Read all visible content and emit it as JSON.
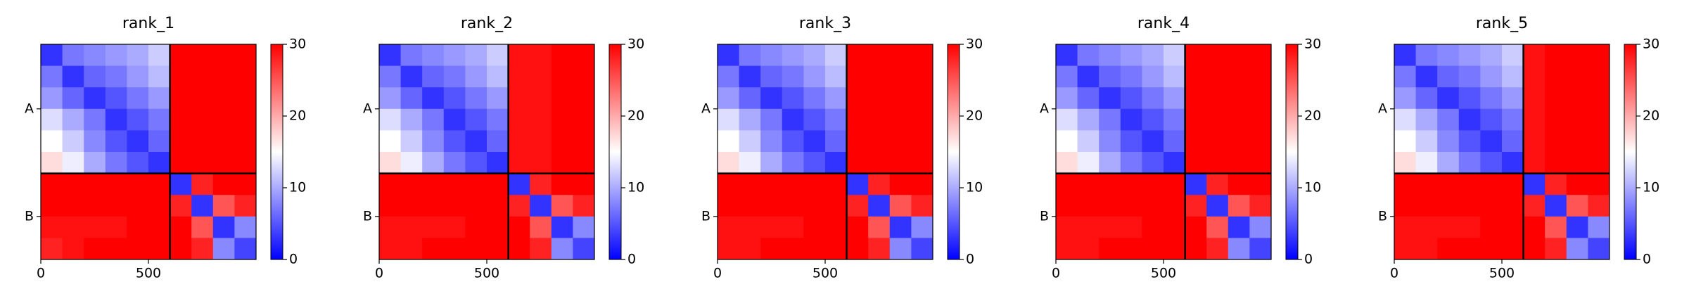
{
  "chart_data": [
    {
      "type": "heatmap",
      "title": "rank_1",
      "colormap": "bwr",
      "xlim": [
        0,
        1000
      ],
      "ylim": [
        0,
        1000
      ],
      "xticks": [
        0,
        500
      ],
      "yticks": [
        {
          "value": 300,
          "label": "A"
        },
        {
          "value": 800,
          "label": "B"
        }
      ],
      "chain_breaks": [
        600
      ],
      "clim": [
        0,
        30
      ],
      "cticks": [
        0,
        10,
        20,
        30
      ],
      "z": [
        [
          3,
          7,
          8,
          9,
          10,
          12,
          30,
          30,
          30,
          30
        ],
        [
          7,
          3,
          6,
          7,
          9,
          11,
          30,
          30,
          30,
          30
        ],
        [
          9,
          6,
          3,
          5,
          7,
          9,
          30,
          30,
          30,
          30
        ],
        [
          13,
          10,
          7,
          3,
          5,
          7,
          30,
          30,
          30,
          30
        ],
        [
          15,
          12,
          8,
          5,
          3,
          6,
          30,
          30,
          30,
          30
        ],
        [
          17,
          14,
          10,
          7,
          5,
          3,
          30,
          30,
          30,
          30
        ],
        [
          30,
          30,
          30,
          30,
          30,
          30,
          3,
          28,
          30,
          30
        ],
        [
          30,
          30,
          30,
          30,
          30,
          30,
          28,
          3,
          25,
          28
        ],
        [
          29,
          29,
          29,
          29,
          30,
          30,
          30,
          25,
          3,
          8
        ],
        [
          28,
          29,
          30,
          30,
          30,
          30,
          30,
          28,
          8,
          4
        ]
      ]
    },
    {
      "type": "heatmap",
      "title": "rank_2",
      "colormap": "bwr",
      "xlim": [
        0,
        1000
      ],
      "ylim": [
        0,
        1000
      ],
      "xticks": [
        0,
        500
      ],
      "yticks": [
        {
          "value": 300,
          "label": "A"
        },
        {
          "value": 800,
          "label": "B"
        }
      ],
      "chain_breaks": [
        600
      ],
      "clim": [
        0,
        30
      ],
      "cticks": [
        0,
        10,
        20,
        30
      ],
      "z": [
        [
          3,
          7,
          8,
          9,
          10,
          12,
          29,
          29,
          30,
          30
        ],
        [
          7,
          3,
          6,
          7,
          9,
          11,
          29,
          29,
          30,
          30
        ],
        [
          9,
          6,
          3,
          5,
          7,
          9,
          29,
          29,
          30,
          30
        ],
        [
          13,
          10,
          7,
          3,
          5,
          7,
          29,
          29,
          30,
          30
        ],
        [
          15,
          12,
          8,
          5,
          3,
          6,
          29,
          29,
          30,
          30
        ],
        [
          17,
          14,
          10,
          7,
          5,
          3,
          29,
          29,
          30,
          30
        ],
        [
          30,
          30,
          30,
          30,
          30,
          30,
          3,
          28,
          30,
          30
        ],
        [
          30,
          30,
          30,
          30,
          30,
          30,
          28,
          3,
          25,
          28
        ],
        [
          29,
          29,
          29,
          29,
          30,
          30,
          30,
          25,
          3,
          8
        ],
        [
          29,
          29,
          30,
          30,
          30,
          30,
          30,
          28,
          8,
          4
        ]
      ]
    },
    {
      "type": "heatmap",
      "title": "rank_3",
      "colormap": "bwr",
      "xlim": [
        0,
        1000
      ],
      "ylim": [
        0,
        1000
      ],
      "xticks": [
        0,
        500
      ],
      "yticks": [
        {
          "value": 300,
          "label": "A"
        },
        {
          "value": 800,
          "label": "B"
        }
      ],
      "chain_breaks": [
        600
      ],
      "clim": [
        0,
        30
      ],
      "cticks": [
        0,
        10,
        20,
        30
      ],
      "z": [
        [
          3,
          7,
          8,
          9,
          10,
          12,
          30,
          30,
          30,
          30
        ],
        [
          7,
          3,
          6,
          7,
          9,
          11,
          30,
          30,
          30,
          30
        ],
        [
          9,
          6,
          3,
          5,
          7,
          9,
          30,
          30,
          30,
          30
        ],
        [
          13,
          10,
          7,
          3,
          5,
          7,
          30,
          30,
          30,
          30
        ],
        [
          15,
          12,
          8,
          5,
          3,
          6,
          30,
          30,
          30,
          30
        ],
        [
          17,
          14,
          10,
          7,
          5,
          3,
          30,
          30,
          30,
          30
        ],
        [
          30,
          30,
          30,
          30,
          30,
          30,
          3,
          28,
          30,
          30
        ],
        [
          30,
          30,
          30,
          30,
          30,
          30,
          28,
          3,
          25,
          28
        ],
        [
          29,
          29,
          29,
          29,
          30,
          30,
          30,
          25,
          3,
          8
        ],
        [
          29,
          29,
          30,
          30,
          30,
          30,
          30,
          28,
          8,
          4
        ]
      ]
    },
    {
      "type": "heatmap",
      "title": "rank_4",
      "colormap": "bwr",
      "xlim": [
        0,
        1000
      ],
      "ylim": [
        0,
        1000
      ],
      "xticks": [
        0,
        500
      ],
      "yticks": [
        {
          "value": 300,
          "label": "A"
        },
        {
          "value": 800,
          "label": "B"
        }
      ],
      "chain_breaks": [
        600
      ],
      "clim": [
        0,
        30
      ],
      "cticks": [
        0,
        10,
        20,
        30
      ],
      "z": [
        [
          3,
          7,
          8,
          9,
          10,
          12,
          30,
          30,
          30,
          30
        ],
        [
          7,
          3,
          6,
          7,
          9,
          11,
          30,
          30,
          30,
          30
        ],
        [
          9,
          6,
          3,
          5,
          7,
          9,
          30,
          30,
          30,
          30
        ],
        [
          13,
          10,
          7,
          3,
          5,
          7,
          30,
          30,
          30,
          30
        ],
        [
          15,
          12,
          8,
          5,
          3,
          6,
          30,
          30,
          30,
          30
        ],
        [
          17,
          14,
          10,
          7,
          5,
          3,
          30,
          30,
          30,
          30
        ],
        [
          30,
          30,
          30,
          30,
          30,
          30,
          3,
          28,
          30,
          30
        ],
        [
          30,
          30,
          30,
          30,
          30,
          30,
          28,
          3,
          25,
          28
        ],
        [
          29,
          29,
          29,
          29,
          30,
          30,
          30,
          25,
          3,
          8
        ],
        [
          29,
          29,
          30,
          30,
          30,
          30,
          30,
          28,
          8,
          4
        ]
      ]
    },
    {
      "type": "heatmap",
      "title": "rank_5",
      "colormap": "bwr",
      "xlim": [
        0,
        1000
      ],
      "ylim": [
        0,
        1000
      ],
      "xticks": [
        0,
        500
      ],
      "yticks": [
        {
          "value": 300,
          "label": "A"
        },
        {
          "value": 800,
          "label": "B"
        }
      ],
      "chain_breaks": [
        600
      ],
      "clim": [
        0,
        30
      ],
      "cticks": [
        0,
        10,
        20,
        30
      ],
      "z": [
        [
          3,
          7,
          8,
          9,
          10,
          12,
          29,
          30,
          30,
          30
        ],
        [
          7,
          3,
          6,
          7,
          9,
          11,
          29,
          30,
          30,
          30
        ],
        [
          9,
          6,
          3,
          5,
          7,
          9,
          29,
          30,
          30,
          30
        ],
        [
          13,
          10,
          7,
          3,
          5,
          7,
          29,
          30,
          30,
          30
        ],
        [
          15,
          12,
          8,
          5,
          3,
          6,
          29,
          30,
          30,
          30
        ],
        [
          17,
          14,
          10,
          7,
          5,
          3,
          29,
          30,
          30,
          30
        ],
        [
          30,
          30,
          30,
          30,
          30,
          30,
          3,
          28,
          30,
          30
        ],
        [
          30,
          30,
          30,
          30,
          30,
          30,
          28,
          3,
          25,
          28
        ],
        [
          29,
          29,
          29,
          29,
          30,
          30,
          30,
          25,
          3,
          8
        ],
        [
          29,
          29,
          30,
          30,
          30,
          30,
          30,
          28,
          8,
          4
        ]
      ]
    }
  ]
}
